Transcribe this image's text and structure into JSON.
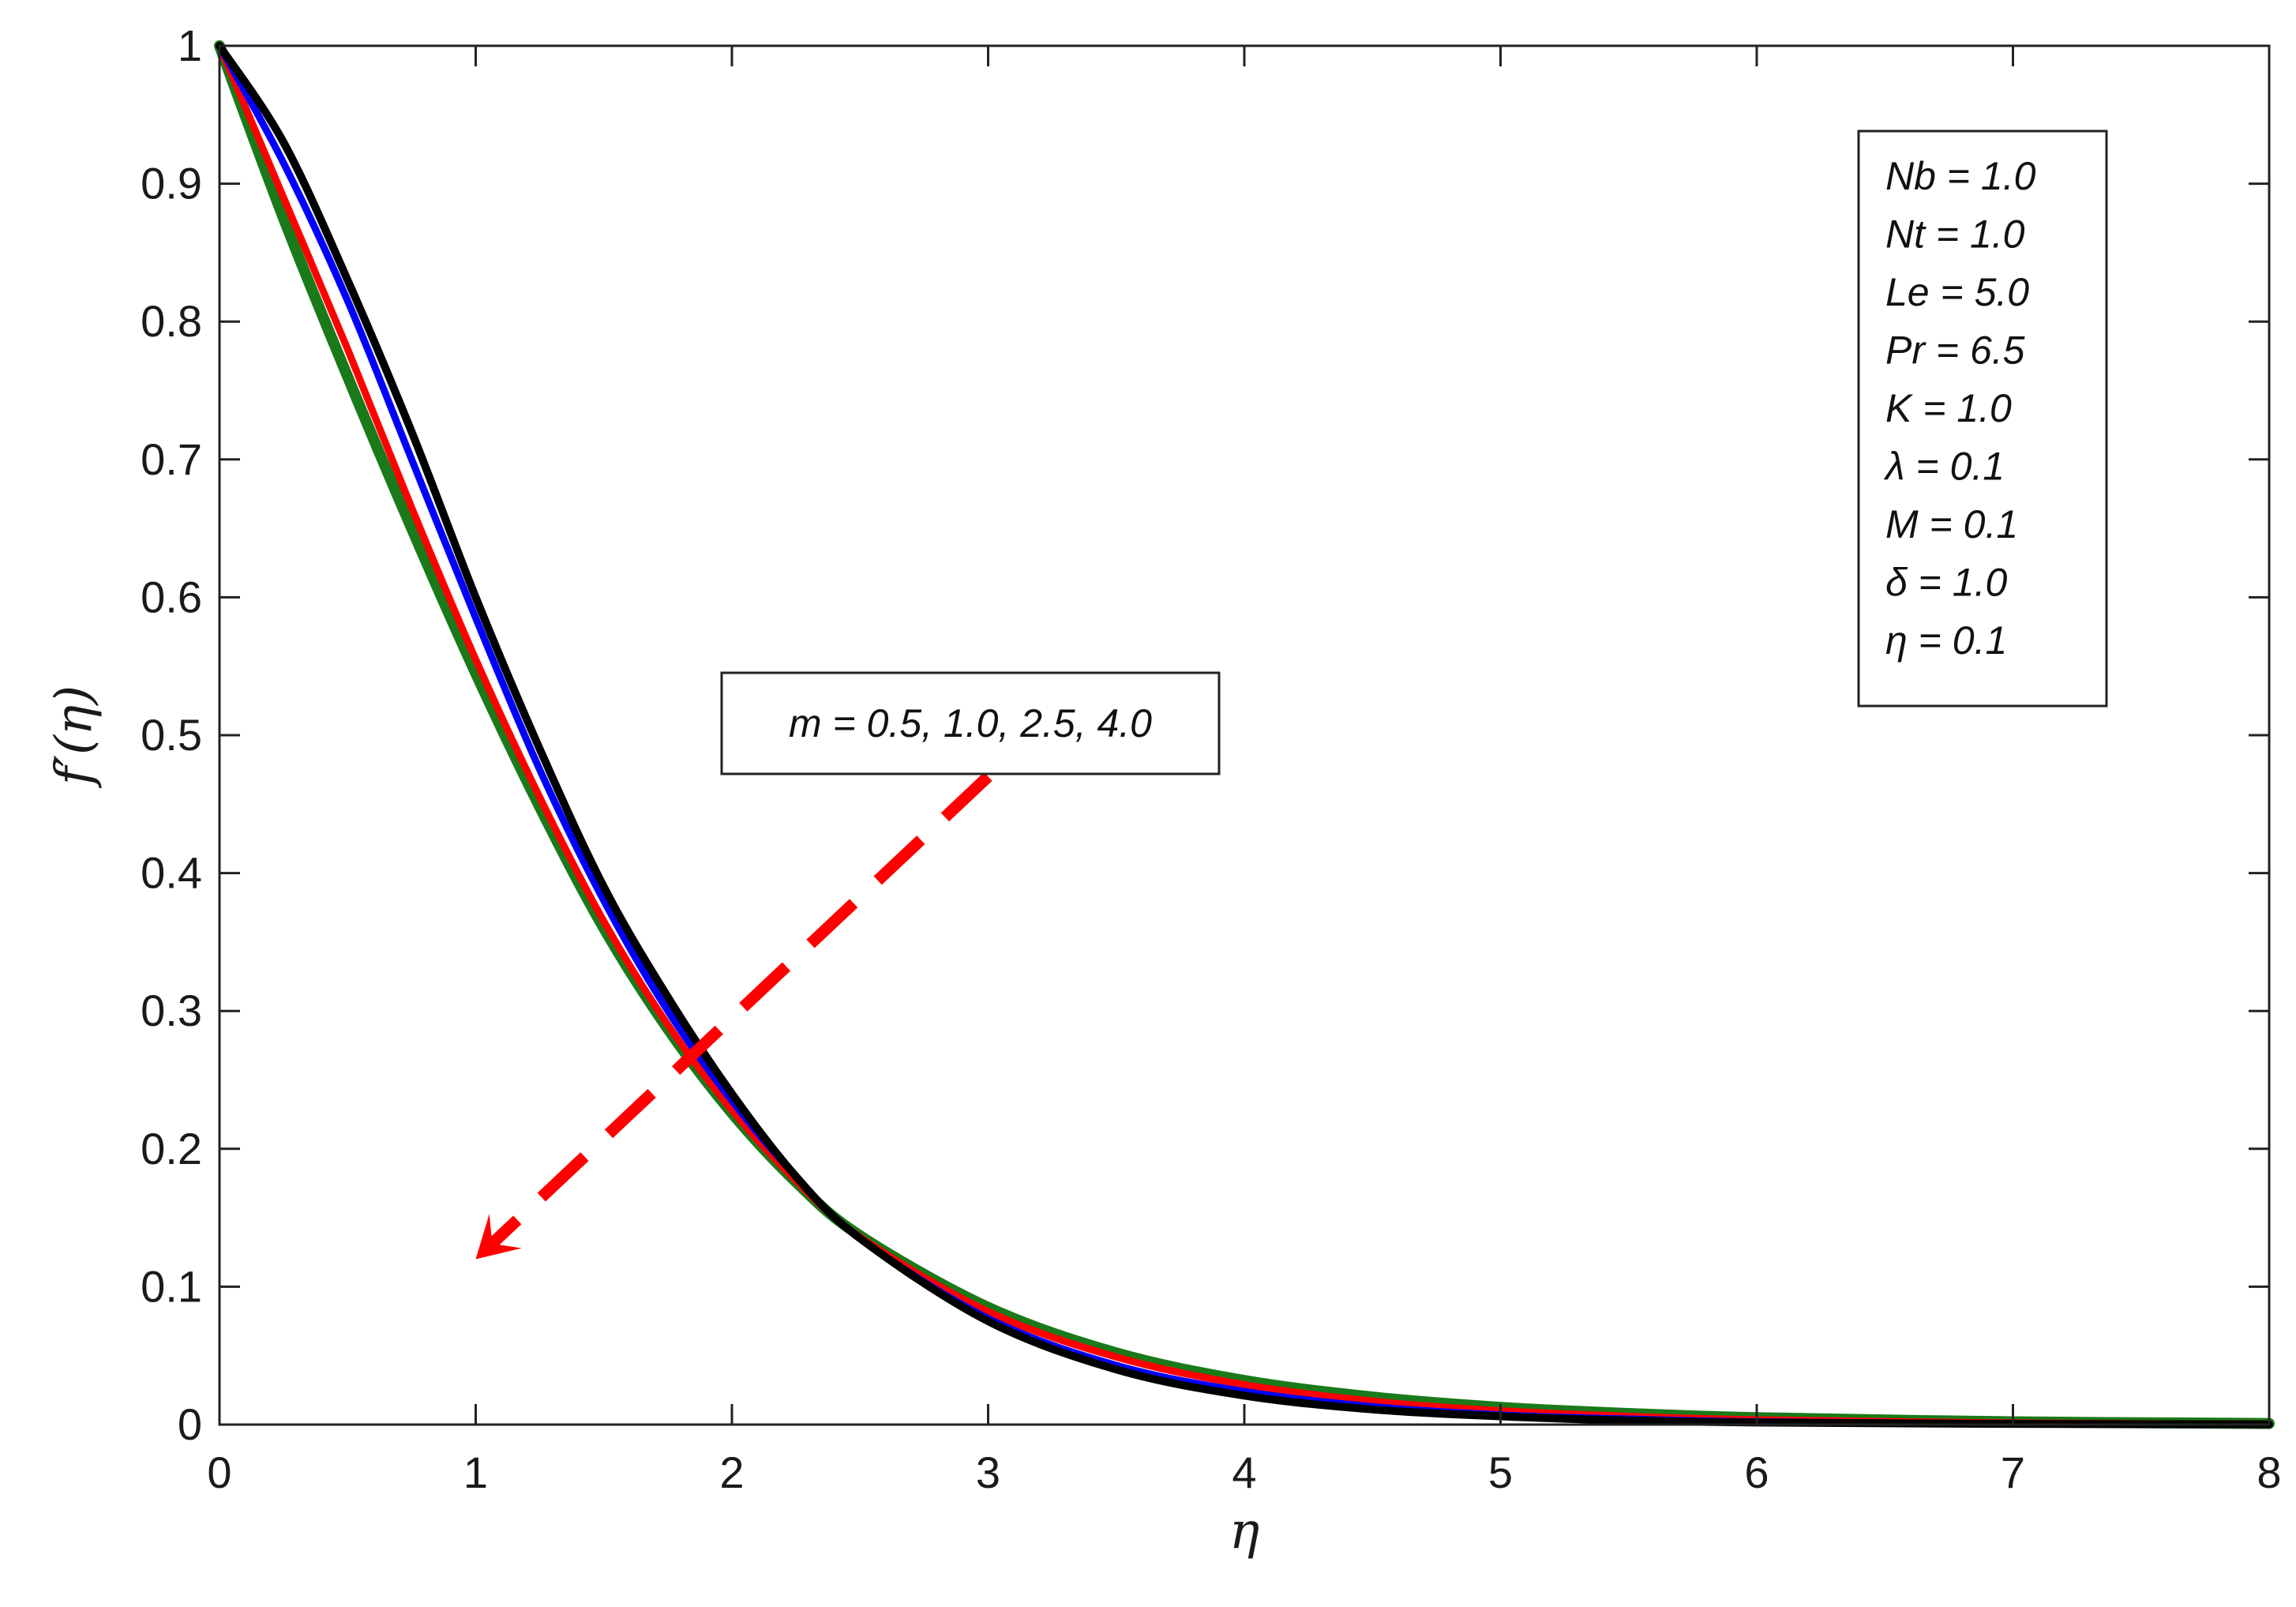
{
  "chart_data": {
    "type": "line",
    "title": "",
    "xlabel": "η",
    "ylabel": "f′(η)",
    "xlim": [
      0,
      8
    ],
    "ylim": [
      0,
      1
    ],
    "xticks": [
      "0",
      "1",
      "2",
      "3",
      "4",
      "5",
      "6",
      "7",
      "8"
    ],
    "yticks": [
      "0",
      "0.1",
      "0.2",
      "0.3",
      "0.4",
      "0.5",
      "0.6",
      "0.7",
      "0.8",
      "0.9",
      "1"
    ],
    "grid": false,
    "series": [
      {
        "color": "#000000",
        "x": [
          0,
          0.25,
          0.5,
          0.75,
          1.0,
          1.25,
          1.5,
          1.75,
          2.0,
          2.25,
          2.5,
          3.0,
          3.5,
          4.0,
          4.5,
          5.0,
          5.5,
          6.0,
          7.0,
          8.0
        ],
        "y": [
          1.0,
          0.93,
          0.83,
          0.72,
          0.6,
          0.49,
          0.39,
          0.31,
          0.24,
          0.18,
          0.135,
          0.075,
          0.04,
          0.021,
          0.011,
          0.006,
          0.003,
          0.0015,
          0.0005,
          0.0002
        ]
      },
      {
        "color": "#0000ff",
        "x": [
          0,
          0.25,
          0.5,
          0.75,
          1.0,
          1.25,
          1.5,
          1.75,
          2.0,
          2.25,
          2.5,
          3.0,
          3.5,
          4.0,
          4.5,
          5.0,
          5.5,
          6.0,
          7.0,
          8.0
        ],
        "y": [
          1.0,
          0.915,
          0.815,
          0.7,
          0.585,
          0.475,
          0.38,
          0.3,
          0.235,
          0.18,
          0.135,
          0.077,
          0.043,
          0.024,
          0.013,
          0.007,
          0.004,
          0.002,
          0.0007,
          0.0002
        ]
      },
      {
        "color": "#ff0000",
        "x": [
          0,
          0.25,
          0.5,
          0.75,
          1.0,
          1.25,
          1.5,
          1.75,
          2.0,
          2.25,
          2.5,
          3.0,
          3.5,
          4.0,
          4.5,
          5.0,
          5.5,
          6.0,
          7.0,
          8.0
        ],
        "y": [
          1.0,
          0.89,
          0.78,
          0.665,
          0.555,
          0.455,
          0.365,
          0.29,
          0.228,
          0.177,
          0.136,
          0.082,
          0.049,
          0.029,
          0.017,
          0.01,
          0.006,
          0.0035,
          0.0012,
          0.0004
        ]
      },
      {
        "color": "#1a7a1a",
        "x": [
          0,
          0.25,
          0.5,
          0.75,
          1.0,
          1.25,
          1.5,
          1.75,
          2.0,
          2.25,
          2.5,
          3.0,
          3.5,
          4.0,
          4.5,
          5.0,
          5.5,
          6.0,
          7.0,
          8.0
        ],
        "y": [
          1.0,
          0.875,
          0.76,
          0.65,
          0.545,
          0.448,
          0.36,
          0.287,
          0.226,
          0.176,
          0.137,
          0.085,
          0.052,
          0.032,
          0.02,
          0.0125,
          0.008,
          0.005,
          0.002,
          0.0008
        ]
      }
    ],
    "params_box": {
      "lines": [
        "Nb = 1.0",
        "Nt = 1.0",
        "Le = 5.0",
        "Pr = 6.5",
        "K = 1.0",
        "λ = 0.1",
        "M = 0.1",
        "δ = 1.0",
        "η = 0.1"
      ]
    },
    "annotation": {
      "text": "m = 0.5, 1.0, 2.5, 4.0",
      "arrow_from": [
        3.0,
        0.47
      ],
      "arrow_to": [
        1.0,
        0.12
      ],
      "arrow_color": "#ff0000"
    }
  }
}
